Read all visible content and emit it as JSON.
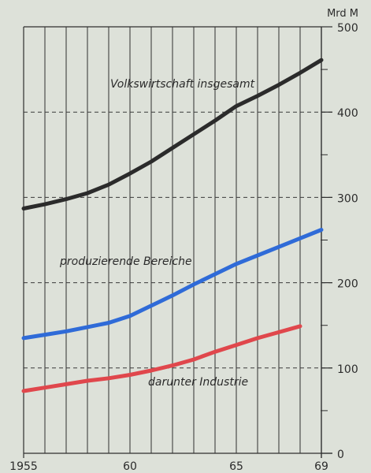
{
  "chart_data": {
    "type": "line",
    "unit": "Mrd M",
    "x": [
      1955,
      1956,
      1957,
      1958,
      1959,
      1960,
      1961,
      1962,
      1963,
      1964,
      1965,
      1966,
      1967,
      1968,
      1969
    ],
    "xlim": [
      1955,
      1969
    ],
    "ylim": [
      0,
      500
    ],
    "x_tick_labels": [
      {
        "x": 1955,
        "label": "1955"
      },
      {
        "x": 1960,
        "label": "60"
      },
      {
        "x": 1965,
        "label": "65"
      },
      {
        "x": 1969,
        "label": "69"
      }
    ],
    "y_ticks": [
      0,
      100,
      200,
      300,
      400,
      500
    ],
    "y_tick_labels": [
      "0",
      "100",
      "200",
      "300",
      "400",
      "500"
    ],
    "grid": true,
    "series": [
      {
        "name": "Volkswirtschaft insgesamt",
        "color": "#2b2b2b",
        "x": [
          1955,
          1956,
          1957,
          1958,
          1959,
          1960,
          1961,
          1962,
          1963,
          1964,
          1965,
          1966,
          1967,
          1968,
          1969
        ],
        "values": [
          287,
          292,
          298,
          305,
          315,
          328,
          342,
          358,
          374,
          390,
          407,
          419,
          432,
          446,
          461
        ]
      },
      {
        "name": "produzierende Bereiche",
        "color": "#2f6bd8",
        "x": [
          1955,
          1956,
          1957,
          1958,
          1959,
          1960,
          1961,
          1962,
          1963,
          1964,
          1965,
          1966,
          1967,
          1968,
          1969
        ],
        "values": [
          135,
          139,
          143,
          148,
          153,
          161,
          173,
          185,
          198,
          210,
          222,
          232,
          242,
          252,
          262
        ]
      },
      {
        "name": "darunter Industrie",
        "color": "#e0474c",
        "x": [
          1955,
          1956,
          1957,
          1958,
          1959,
          1960,
          1961,
          1962,
          1963,
          1964,
          1965,
          1966,
          1967,
          1968
        ],
        "values": [
          73,
          77,
          81,
          85,
          88,
          92,
          97,
          103,
          110,
          119,
          127,
          135,
          142,
          149
        ]
      }
    ]
  }
}
